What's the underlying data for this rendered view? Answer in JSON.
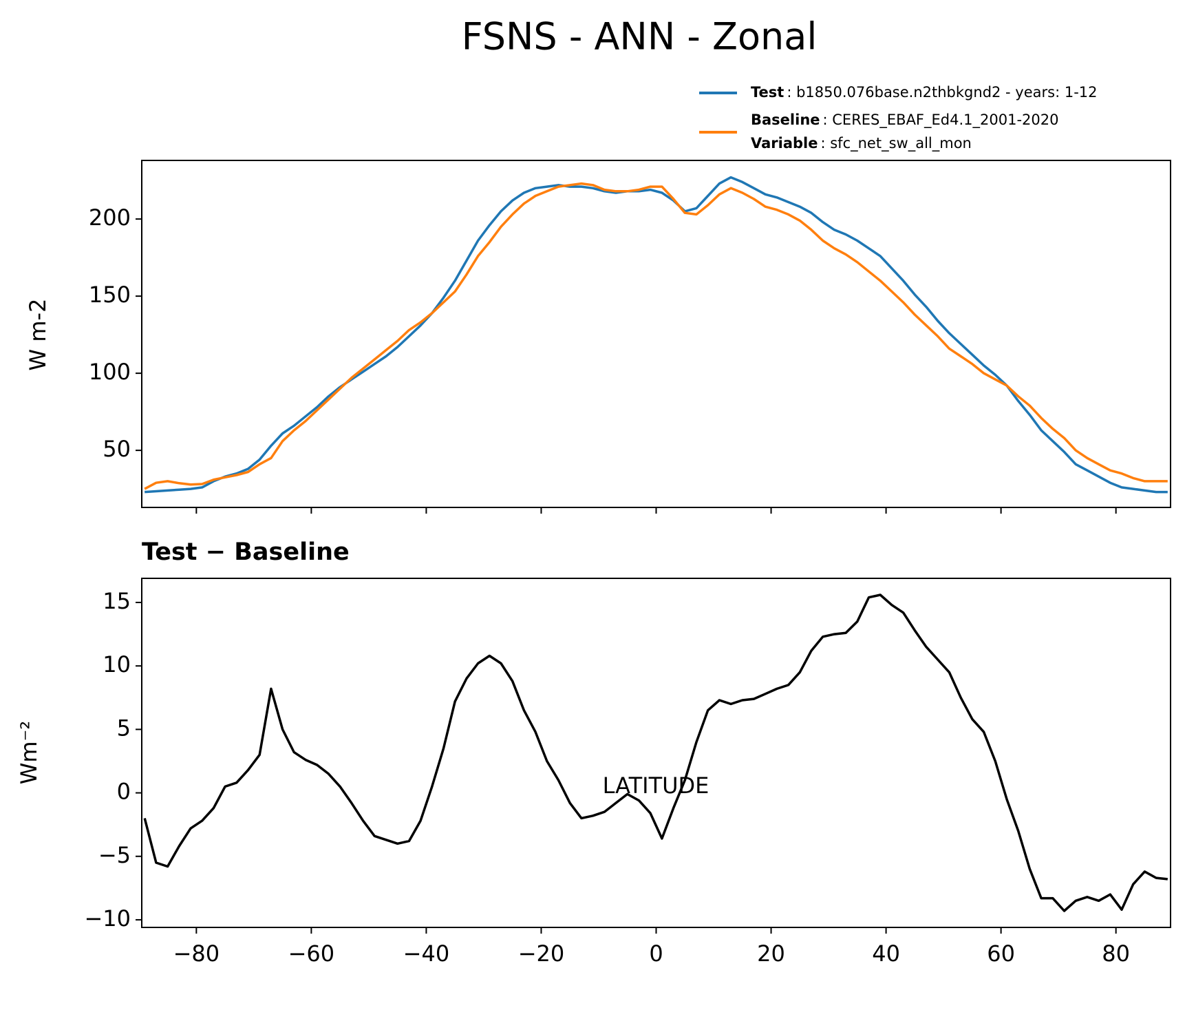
{
  "chart_data": [
    {
      "type": "line",
      "title": "FSNS - ANN - Zonal",
      "ylabel": "W m-2",
      "x": [
        -89,
        -87,
        -85,
        -83,
        -81,
        -79,
        -77,
        -75,
        -73,
        -71,
        -69,
        -67,
        -65,
        -63,
        -61,
        -59,
        -57,
        -55,
        -53,
        -51,
        -49,
        -47,
        -45,
        -43,
        -41,
        -39,
        -37,
        -35,
        -33,
        -31,
        -29,
        -27,
        -25,
        -23,
        -21,
        -19,
        -17,
        -15,
        -13,
        -11,
        -9,
        -7,
        -5,
        -3,
        -1,
        1,
        3,
        5,
        7,
        9,
        11,
        13,
        15,
        17,
        19,
        21,
        23,
        25,
        27,
        29,
        31,
        33,
        35,
        37,
        39,
        41,
        43,
        45,
        47,
        49,
        51,
        53,
        55,
        57,
        59,
        61,
        63,
        65,
        67,
        69,
        71,
        73,
        75,
        77,
        79,
        81,
        83,
        85,
        87,
        89
      ],
      "series": [
        {
          "name": "Test",
          "label": ": b1850.076base.n2thbkgnd2 - years: 1-12",
          "color": "#1f77b4",
          "values": [
            23,
            23.5,
            24,
            24.5,
            25,
            26,
            30,
            33,
            35,
            38,
            44,
            53,
            61,
            66,
            72,
            78,
            85,
            91,
            96,
            101,
            106,
            111,
            117,
            124,
            131,
            139,
            149,
            160,
            173,
            186,
            196,
            205,
            212,
            217,
            220,
            221,
            222,
            221,
            221,
            220,
            218,
            217,
            218,
            218,
            219,
            217,
            212,
            205,
            207,
            215,
            223,
            227,
            224,
            220,
            216,
            214,
            211,
            208,
            204,
            198,
            193,
            190,
            186,
            181,
            176,
            168,
            160,
            151,
            143,
            134,
            126,
            119,
            112,
            105,
            99,
            92,
            82,
            73,
            63,
            56,
            49,
            41,
            37,
            33,
            29,
            26,
            25,
            24,
            23,
            23
          ]
        },
        {
          "name": "Baseline",
          "label": ": CERES_EBAF_Ed4.1_2001-2020",
          "variable_name": "Variable",
          "variable": ": sfc_net_sw_all_mon",
          "color": "#ff7f0e",
          "values": [
            25,
            29,
            30,
            28.7,
            27.8,
            28.2,
            31,
            32.5,
            34,
            36,
            41,
            45,
            56,
            63,
            69,
            76,
            83,
            90,
            97,
            103,
            109,
            115,
            121,
            128,
            133,
            139,
            146,
            153,
            164,
            176,
            185,
            195,
            203,
            210,
            215,
            218,
            221,
            222,
            223,
            222,
            219,
            218,
            218,
            219,
            221,
            221,
            213,
            204,
            203,
            209,
            216,
            220,
            217,
            213,
            208,
            206,
            203,
            199,
            193,
            186,
            181,
            177,
            172,
            166,
            160,
            153,
            146,
            138,
            131,
            124,
            116,
            111,
            106,
            100,
            96,
            92,
            85,
            79,
            71,
            64,
            58,
            50,
            45,
            41,
            37,
            35,
            32,
            30,
            30,
            30
          ]
        }
      ],
      "xlim": [
        -89.5,
        89.5
      ],
      "xticks": [
        -80,
        -60,
        -40,
        -20,
        0,
        20,
        40,
        60,
        80
      ],
      "ylim": [
        13,
        238
      ],
      "yticks": [
        50,
        100,
        150,
        200
      ]
    },
    {
      "type": "line",
      "title": "Test − Baseline",
      "xlabel": "LATITUDE",
      "ylabel": "Wm⁻²",
      "x": [
        -89,
        -87,
        -85,
        -83,
        -81,
        -79,
        -77,
        -75,
        -73,
        -71,
        -69,
        -67,
        -65,
        -63,
        -61,
        -59,
        -57,
        -55,
        -53,
        -51,
        -49,
        -47,
        -45,
        -43,
        -41,
        -39,
        -37,
        -35,
        -33,
        -31,
        -29,
        -27,
        -25,
        -23,
        -21,
        -19,
        -17,
        -15,
        -13,
        -11,
        -9,
        -7,
        -5,
        -3,
        -1,
        1,
        3,
        5,
        7,
        9,
        11,
        13,
        15,
        17,
        19,
        21,
        23,
        25,
        27,
        29,
        31,
        33,
        35,
        37,
        39,
        41,
        43,
        45,
        47,
        49,
        51,
        53,
        55,
        57,
        59,
        61,
        63,
        65,
        67,
        69,
        71,
        73,
        75,
        77,
        79,
        81,
        83,
        85,
        87,
        89
      ],
      "values": [
        -2,
        -5.5,
        -5.8,
        -4.2,
        -2.8,
        -2.2,
        -1.2,
        0.5,
        0.8,
        1.8,
        3,
        8.2,
        5,
        3.2,
        2.6,
        2.2,
        1.5,
        0.5,
        -0.8,
        -2.2,
        -3.4,
        -3.7,
        -4,
        -3.8,
        -2.2,
        0.5,
        3.5,
        7.2,
        9,
        10.2,
        10.8,
        10.2,
        8.8,
        6.5,
        4.8,
        2.5,
        1,
        -0.8,
        -2,
        -1.8,
        -1.5,
        -0.8,
        -0.1,
        -0.6,
        -1.6,
        -3.6,
        -1.2,
        1,
        4,
        6.5,
        7.3,
        7,
        7.3,
        7.4,
        7.8,
        8.2,
        8.5,
        9.5,
        11.2,
        12.3,
        12.5,
        12.6,
        13.5,
        15.4,
        15.6,
        14.8,
        14.2,
        12.8,
        11.5,
        10.5,
        9.5,
        7.5,
        5.8,
        4.8,
        2.5,
        -0.5,
        -3,
        -6,
        -8.3,
        -8.3,
        -9.3,
        -8.5,
        -8.2,
        -8.5,
        -8,
        -9.2,
        -7.2,
        -6.2,
        -6.7,
        -6.8
      ],
      "color": "#000000",
      "xlim": [
        -89.5,
        89.5
      ],
      "xticks": [
        {
          "value": -80,
          "label": "−80"
        },
        {
          "value": -60,
          "label": "−60"
        },
        {
          "value": -40,
          "label": "−40"
        },
        {
          "value": -20,
          "label": "−20"
        },
        0,
        20,
        40,
        60,
        80
      ],
      "ylim": [
        -10.6,
        16.9
      ],
      "yticks": [
        {
          "value": -10,
          "label": "−10"
        },
        {
          "value": -5,
          "label": "−5"
        },
        0,
        5,
        10,
        15
      ]
    }
  ]
}
